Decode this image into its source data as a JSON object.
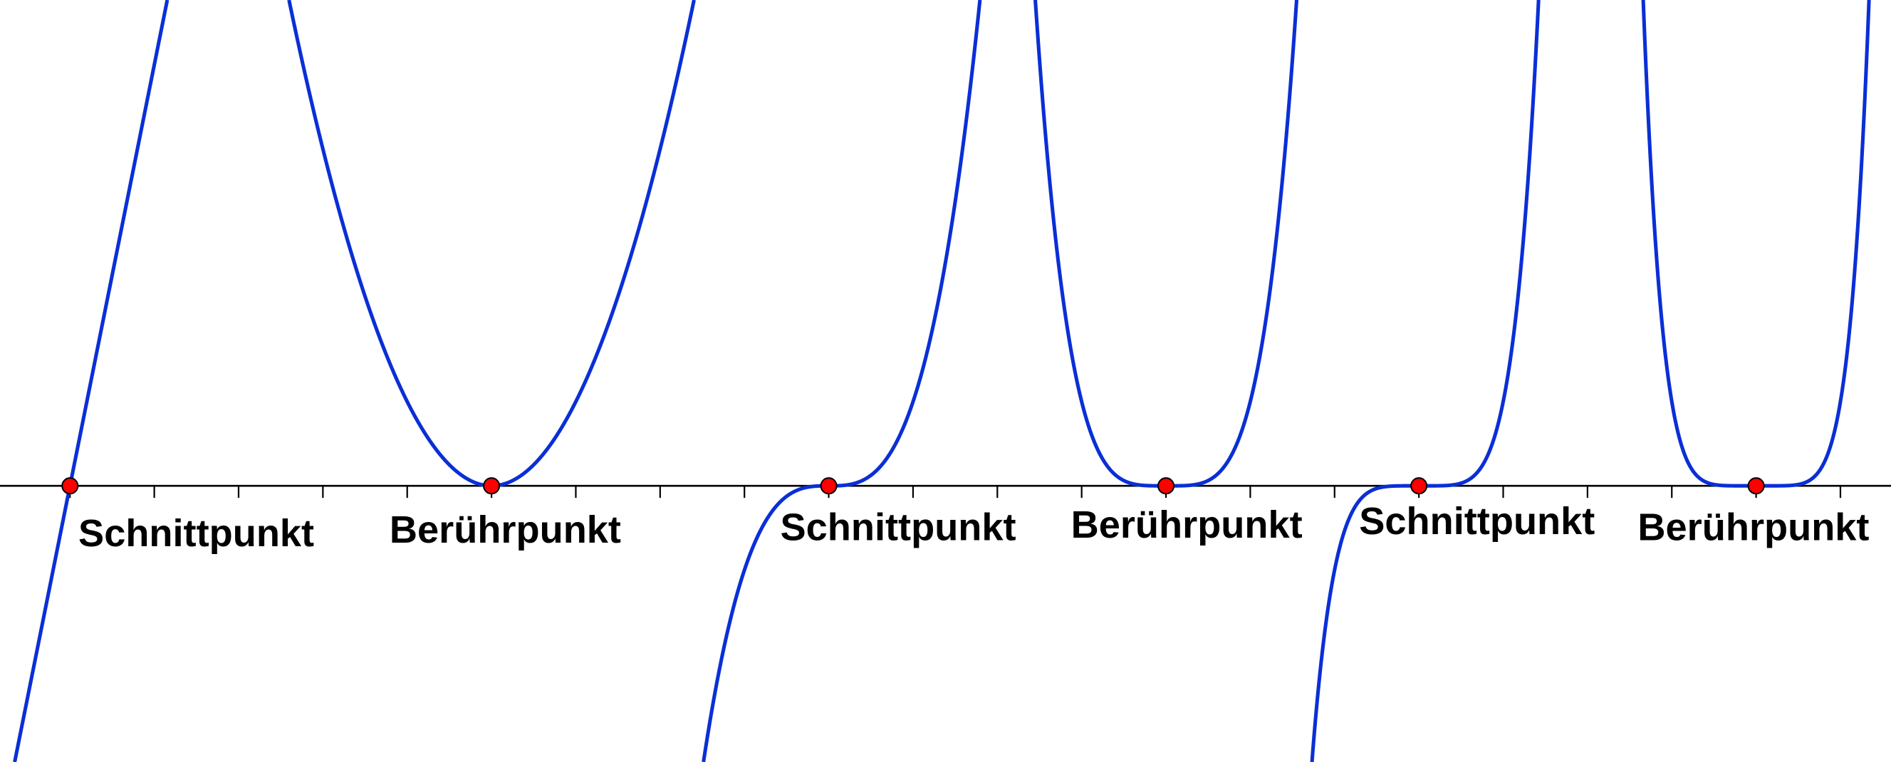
{
  "chart_data": {
    "type": "line",
    "title": "",
    "xlabel": "",
    "ylabel": "",
    "xlim": [
      -0.83,
      21.6
    ],
    "ylim": [
      -3.28,
      5.77
    ],
    "grid": false,
    "axis_ticks": "x-axis unit ticks, no labels",
    "line_color": "#0a2fd6",
    "point_color": "#ff0000",
    "series": [
      {
        "expression": "5*x",
        "root": 0,
        "degree": 1,
        "label": "Schnittpunkt"
      },
      {
        "expression": "(x-5)^2",
        "root": 5,
        "degree": 2,
        "label": "Berührpunkt"
      },
      {
        "expression": "(x-9)^3",
        "root": 9,
        "degree": 3,
        "label": "Schnittpunkt"
      },
      {
        "expression": "(x-13)^4",
        "root": 13,
        "degree": 4,
        "label": "Berührpunkt"
      },
      {
        "expression": "(x-16)^5",
        "root": 16,
        "degree": 5,
        "label": "Schnittpunkt"
      },
      {
        "expression": "(x-20)^6",
        "root": 20,
        "degree": 6,
        "label": "Berührpunkt"
      }
    ]
  }
}
